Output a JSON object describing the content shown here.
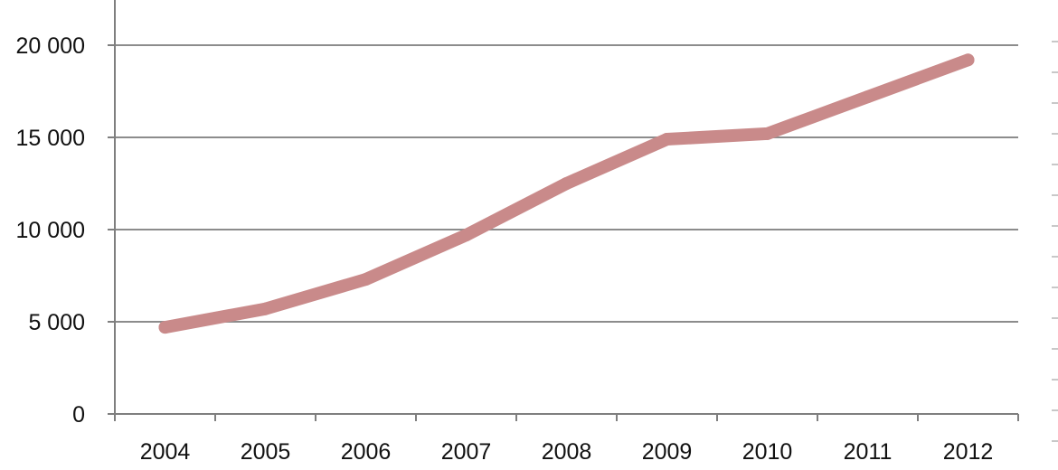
{
  "chart_data": {
    "type": "line",
    "title": "",
    "xlabel": "",
    "ylabel": "",
    "categories": [
      "2004",
      "2005",
      "2006",
      "2007",
      "2008",
      "2009",
      "2010",
      "2011",
      "2012"
    ],
    "series": [
      {
        "values": [
          4700,
          5700,
          7300,
          9700,
          12500,
          14900,
          15200,
          17200,
          19200
        ]
      }
    ],
    "ylim": [
      0,
      20000
    ],
    "yticks": [
      0,
      5000,
      10000,
      15000,
      20000
    ],
    "ytick_labels": [
      "0",
      "5 000",
      "10 000",
      "15 000",
      "20 000"
    ],
    "grid": true,
    "legend": "none",
    "colors": {
      "line": "#c98a8a",
      "grid": "#8c8c8c",
      "axis": "#7f7f7f"
    }
  }
}
